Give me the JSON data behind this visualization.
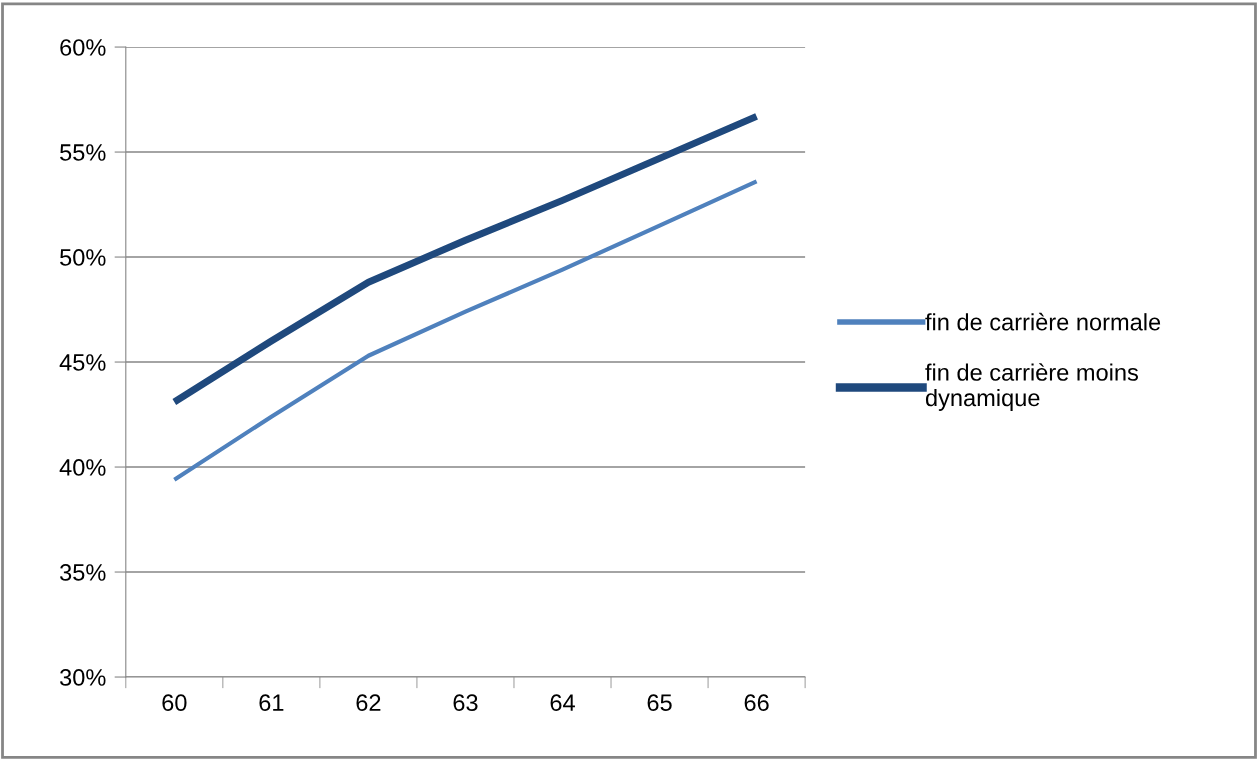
{
  "chart_data": {
    "type": "line",
    "categories": [
      "60",
      "61",
      "62",
      "63",
      "64",
      "65",
      "66"
    ],
    "series": [
      {
        "name": "fin de carrière normale",
        "color": "#4f81bd",
        "values": [
          39.4,
          42.4,
          45.3,
          47.4,
          49.4,
          51.5,
          53.6
        ]
      },
      {
        "name": "fin de carrière moins dynamique",
        "color": "#1f497d",
        "values": [
          43.1,
          46.0,
          48.8,
          50.8,
          52.7,
          54.7,
          56.7
        ]
      }
    ],
    "ylim": [
      30,
      60
    ],
    "yticks": [
      {
        "value": 30,
        "label": "30%"
      },
      {
        "value": 35,
        "label": "35%"
      },
      {
        "value": 40,
        "label": "40%"
      },
      {
        "value": 45,
        "label": "45%"
      },
      {
        "value": 50,
        "label": "50%"
      },
      {
        "value": 55,
        "label": "55%"
      },
      {
        "value": 60,
        "label": "60%"
      }
    ],
    "grid": "y",
    "legend": "right",
    "marker": "none",
    "line_style": "solid"
  }
}
